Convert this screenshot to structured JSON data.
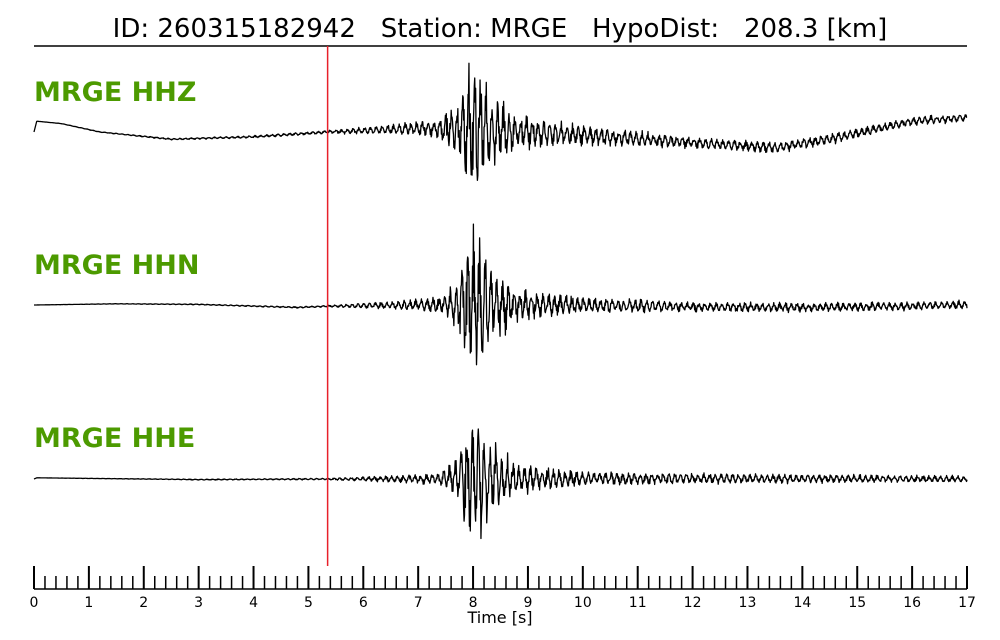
{
  "header": {
    "id_label": "ID:",
    "id_value": "260315182942",
    "station_label": "Station:",
    "station_value": "MRGE",
    "dist_label": "HypoDist:",
    "dist_value": "208.3",
    "dist_unit": "[km]"
  },
  "colors": {
    "label": "#4c9a00",
    "pick": "#e8202a",
    "trace": "#000000"
  },
  "chart_data": {
    "type": "line",
    "xlabel": "Time [s]",
    "xlim": [
      0,
      17
    ],
    "x_major_ticks": [
      0,
      1,
      2,
      3,
      4,
      5,
      6,
      7,
      8,
      9,
      10,
      11,
      12,
      13,
      14,
      15,
      16,
      17
    ],
    "x_minor_step": 0.2,
    "pick_time": 5.35,
    "series": [
      {
        "name": "MRGE HHZ",
        "envelope": [
          [
            0,
            0
          ],
          [
            5.3,
            0.02
          ],
          [
            6.5,
            0.06
          ],
          [
            7.3,
            0.12
          ],
          [
            7.75,
            0.35
          ],
          [
            7.95,
            1.0
          ],
          [
            8.3,
            0.5
          ],
          [
            8.8,
            0.22
          ],
          [
            10,
            0.13
          ],
          [
            12,
            0.07
          ],
          [
            14,
            0.07
          ],
          [
            17,
            0.05
          ]
        ],
        "baseline": [
          [
            0,
            0.0
          ],
          [
            0.05,
            0.18
          ],
          [
            0.5,
            0.14
          ],
          [
            1.2,
            0.0
          ],
          [
            2.5,
            -0.12
          ],
          [
            4,
            -0.08
          ],
          [
            5.35,
            0.0
          ],
          [
            7,
            0.06
          ],
          [
            8,
            0.05
          ],
          [
            10,
            -0.05
          ],
          [
            12,
            -0.18
          ],
          [
            13.5,
            -0.26
          ],
          [
            14.5,
            -0.12
          ],
          [
            16,
            0.18
          ],
          [
            17,
            0.24
          ]
        ]
      },
      {
        "name": "MRGE HHN",
        "envelope": [
          [
            0,
            0
          ],
          [
            5.3,
            0.01
          ],
          [
            6.5,
            0.05
          ],
          [
            7.4,
            0.1
          ],
          [
            7.7,
            0.3
          ],
          [
            8.0,
            1.0
          ],
          [
            8.3,
            0.55
          ],
          [
            8.8,
            0.2
          ],
          [
            10,
            0.1
          ],
          [
            12,
            0.06
          ],
          [
            17,
            0.05
          ]
        ],
        "baseline": [
          [
            0,
            0.0
          ],
          [
            1.5,
            0.02
          ],
          [
            3,
            0.01
          ],
          [
            4.8,
            -0.04
          ],
          [
            5.35,
            -0.02
          ],
          [
            7,
            0.0
          ],
          [
            10,
            0.0
          ],
          [
            12,
            -0.03
          ],
          [
            14,
            -0.04
          ],
          [
            16,
            -0.02
          ],
          [
            17,
            0.01
          ]
        ]
      },
      {
        "name": "MRGE HHE",
        "envelope": [
          [
            0,
            0
          ],
          [
            5.3,
            0.01
          ],
          [
            6.5,
            0.04
          ],
          [
            7.4,
            0.08
          ],
          [
            7.75,
            0.3
          ],
          [
            7.95,
            1.0
          ],
          [
            8.3,
            0.5
          ],
          [
            8.8,
            0.2
          ],
          [
            10,
            0.09
          ],
          [
            12,
            0.07
          ],
          [
            17,
            0.04
          ]
        ],
        "baseline": [
          [
            0,
            0.0
          ],
          [
            0.05,
            0.02
          ],
          [
            1,
            0.01
          ],
          [
            3,
            -0.01
          ],
          [
            5.35,
            0.0
          ],
          [
            8,
            0.0
          ],
          [
            12,
            0.01
          ],
          [
            17,
            0.0
          ]
        ]
      }
    ]
  }
}
